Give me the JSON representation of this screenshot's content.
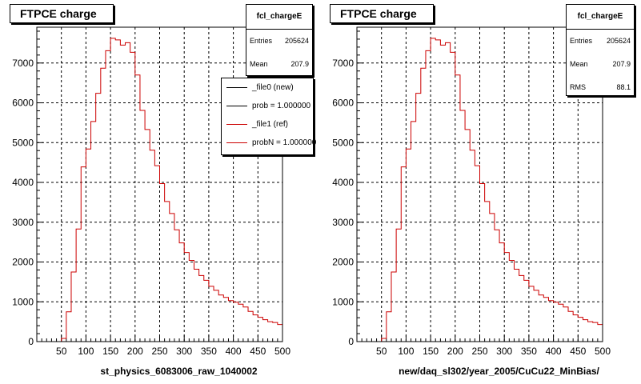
{
  "footer_text": "",
  "chart_data": [
    {
      "type": "histogram",
      "title": "FTPCE charge",
      "xlabel": "st_physics_6083006_raw_1040002",
      "ylabel": "",
      "xlim": [
        0,
        500
      ],
      "ylim": [
        0,
        7900
      ],
      "x_ticks": [
        50,
        100,
        150,
        200,
        250,
        300,
        350,
        400,
        450,
        500
      ],
      "y_ticks": [
        0,
        1000,
        2000,
        3000,
        4000,
        5000,
        6000,
        7000
      ],
      "grid": true,
      "bin_width": 10,
      "bin_edges_start": 0,
      "stats": {
        "name": "fcl_chargeE",
        "entries_label": "Entries",
        "entries": "205624",
        "mean_label": "Mean",
        "mean": "207.9"
      },
      "legend": {
        "placement": "top-right",
        "entries": [
          {
            "label": "_file0 (new)",
            "color": "#000000"
          },
          {
            "label": "prob = 1.000000",
            "color": "#000000"
          },
          {
            "label": "_file1 (ref)",
            "color": "#cc0000"
          },
          {
            "label": "probN = 1.000000",
            "color": "#cc0000"
          }
        ]
      },
      "series": [
        {
          "color": "#cc0000",
          "values": [
            0,
            0,
            0,
            0,
            0,
            80,
            750,
            1750,
            2830,
            4390,
            4840,
            5530,
            6240,
            6870,
            7310,
            7620,
            7580,
            7450,
            7510,
            7270,
            6700,
            5810,
            5330,
            4810,
            4420,
            3970,
            3520,
            3220,
            2810,
            2480,
            2240,
            2040,
            1820,
            1660,
            1540,
            1390,
            1290,
            1170,
            1110,
            1030,
            990,
            940,
            870,
            760,
            670,
            610,
            550,
            500,
            480,
            430
          ]
        }
      ]
    },
    {
      "type": "histogram",
      "title": "FTPCE charge",
      "xlabel": "new/daq_sl302/year_2005/CuCu22_MinBias/",
      "ylabel": "",
      "xlim": [
        0,
        500
      ],
      "ylim": [
        0,
        7900
      ],
      "x_ticks": [
        50,
        100,
        150,
        200,
        250,
        300,
        350,
        400,
        450,
        500
      ],
      "y_ticks": [
        0,
        1000,
        2000,
        3000,
        4000,
        5000,
        6000,
        7000
      ],
      "grid": true,
      "bin_width": 10,
      "bin_edges_start": 0,
      "stats": {
        "name": "fcl_chargeE",
        "entries_label": "Entries",
        "entries": "205624",
        "mean_label": "Mean",
        "mean": "207.9",
        "rms_label": "RMS",
        "rms": "88.1"
      },
      "series": [
        {
          "color": "#cc0000",
          "values": [
            0,
            0,
            0,
            0,
            0,
            80,
            750,
            1750,
            2830,
            4390,
            4840,
            5530,
            6240,
            6870,
            7310,
            7620,
            7580,
            7450,
            7510,
            7270,
            6700,
            5810,
            5330,
            4810,
            4420,
            3970,
            3520,
            3220,
            2810,
            2480,
            2240,
            2040,
            1820,
            1660,
            1540,
            1390,
            1290,
            1170,
            1110,
            1030,
            990,
            940,
            870,
            760,
            670,
            610,
            550,
            500,
            480,
            430
          ]
        }
      ]
    }
  ]
}
